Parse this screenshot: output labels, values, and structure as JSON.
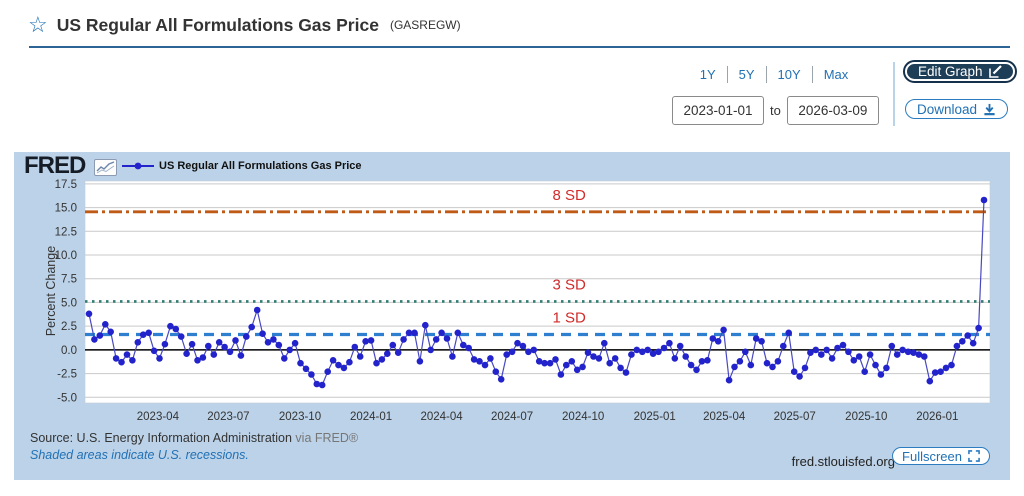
{
  "header": {
    "title": "US Regular All Formulations Gas Price",
    "series_id": "(GASREGW)",
    "star_icon": "star-outline-icon"
  },
  "controls": {
    "ranges": [
      "1Y",
      "5Y",
      "10Y",
      "Max"
    ],
    "date_start": "2023-01-01",
    "to_label": "to",
    "date_end": "2026-03-09",
    "edit_graph_label": "Edit Graph",
    "download_label": "Download"
  },
  "chart": {
    "logo_text": "FRED",
    "legend_label": "US Regular All Formulations Gas Price",
    "ylabel": "Percent Change",
    "footer": {
      "source": "Source: U.S. Energy Information Administration",
      "via": "via FRED®",
      "recession_note": "Shaded areas indicate U.S. recessions.",
      "site": "fred.stlouisfed.org",
      "fullscreen_label": "Fullscreen"
    }
  },
  "chart_data": {
    "type": "line",
    "title": "US Regular All Formulations Gas Price",
    "ylabel": "Percent Change",
    "frequency": "weekly",
    "start_date": "2023-01-02",
    "end_date": "2026-03-09",
    "ylim": [
      -5.6,
      17.8
    ],
    "y_ticks": [
      17.5,
      15.0,
      12.5,
      10.0,
      7.5,
      5.0,
      2.5,
      0.0,
      -2.5,
      -5.0
    ],
    "x_ticks": [
      {
        "label": "2023-04",
        "week": 12.7
      },
      {
        "label": "2023-07",
        "week": 25.7
      },
      {
        "label": "2023-10",
        "week": 38.9
      },
      {
        "label": "2024-01",
        "week": 52.0
      },
      {
        "label": "2024-04",
        "week": 65.0
      },
      {
        "label": "2024-07",
        "week": 78.0
      },
      {
        "label": "2024-10",
        "week": 91.1
      },
      {
        "label": "2025-01",
        "week": 104.3
      },
      {
        "label": "2025-04",
        "week": 117.1
      },
      {
        "label": "2025-07",
        "week": 130.1
      },
      {
        "label": "2025-10",
        "week": 143.3
      },
      {
        "label": "2026-01",
        "week": 156.4
      }
    ],
    "sd_lines": [
      {
        "label": "8 SD",
        "value": 14.55,
        "color": "#bf5b16",
        "style": "dashdot"
      },
      {
        "label": "3 SD",
        "value": 5.1,
        "color": "#2f7d72",
        "style": "dotted"
      },
      {
        "label": "1 SD",
        "value": 1.62,
        "color": "#2e7fd0",
        "style": "dashed"
      }
    ],
    "sd_label_color": "#d22b2b",
    "zero_line_value": 0,
    "line_color": "#4848c0",
    "marker_color": "#2323cc",
    "grid": true,
    "legend_position": "top-left",
    "values": [
      3.8,
      1.1,
      1.5,
      2.7,
      1.9,
      -0.9,
      -1.3,
      -0.5,
      -1.1,
      0.8,
      1.6,
      1.8,
      -0.1,
      -0.9,
      0.6,
      2.5,
      2.2,
      1.4,
      -0.4,
      0.6,
      -1.1,
      -0.8,
      0.4,
      -0.5,
      0.8,
      0.3,
      -0.2,
      1.0,
      -0.6,
      1.4,
      2.4,
      4.2,
      1.7,
      0.8,
      1.1,
      0.5,
      -0.9,
      0.0,
      0.7,
      -1.4,
      -2.0,
      -2.6,
      -3.6,
      -3.7,
      -2.3,
      -1.1,
      -1.6,
      -1.9,
      -1.3,
      0.3,
      -0.7,
      0.9,
      1.0,
      -1.4,
      -1.0,
      -0.4,
      0.5,
      -0.3,
      1.1,
      1.8,
      1.8,
      -1.2,
      2.6,
      0.0,
      1.1,
      1.8,
      1.2,
      -0.7,
      1.8,
      0.5,
      0.2,
      -1.0,
      -1.2,
      -1.6,
      -0.9,
      -2.3,
      -3.1,
      -0.5,
      -0.2,
      0.7,
      0.4,
      -0.2,
      0.0,
      -1.2,
      -1.4,
      -1.4,
      -1.0,
      -2.6,
      -1.6,
      -1.2,
      -2.1,
      -1.8,
      -0.3,
      -0.7,
      -0.9,
      0.7,
      -1.4,
      -0.9,
      -1.9,
      -2.4,
      -0.5,
      0.0,
      -0.2,
      0.0,
      -0.4,
      -0.2,
      0.2,
      0.7,
      -0.9,
      0.4,
      -0.7,
      -1.6,
      -2.1,
      -1.2,
      -1.1,
      1.2,
      0.9,
      2.1,
      -3.2,
      -1.8,
      -1.2,
      -0.2,
      -1.6,
      1.2,
      0.9,
      -1.4,
      -1.8,
      -1.2,
      0.4,
      1.8,
      -2.3,
      -2.8,
      -1.9,
      -0.3,
      0.0,
      -0.5,
      0.0,
      -0.9,
      0.2,
      0.5,
      -0.2,
      -1.1,
      -0.7,
      -2.3,
      -0.5,
      -1.6,
      -2.6,
      -1.9,
      0.4,
      -0.5,
      0.0,
      -0.2,
      -0.3,
      -0.5,
      -0.7,
      -3.3,
      -2.4,
      -2.3,
      -1.9,
      -1.6,
      0.4,
      0.9,
      1.5,
      0.7,
      2.3,
      15.8
    ]
  }
}
